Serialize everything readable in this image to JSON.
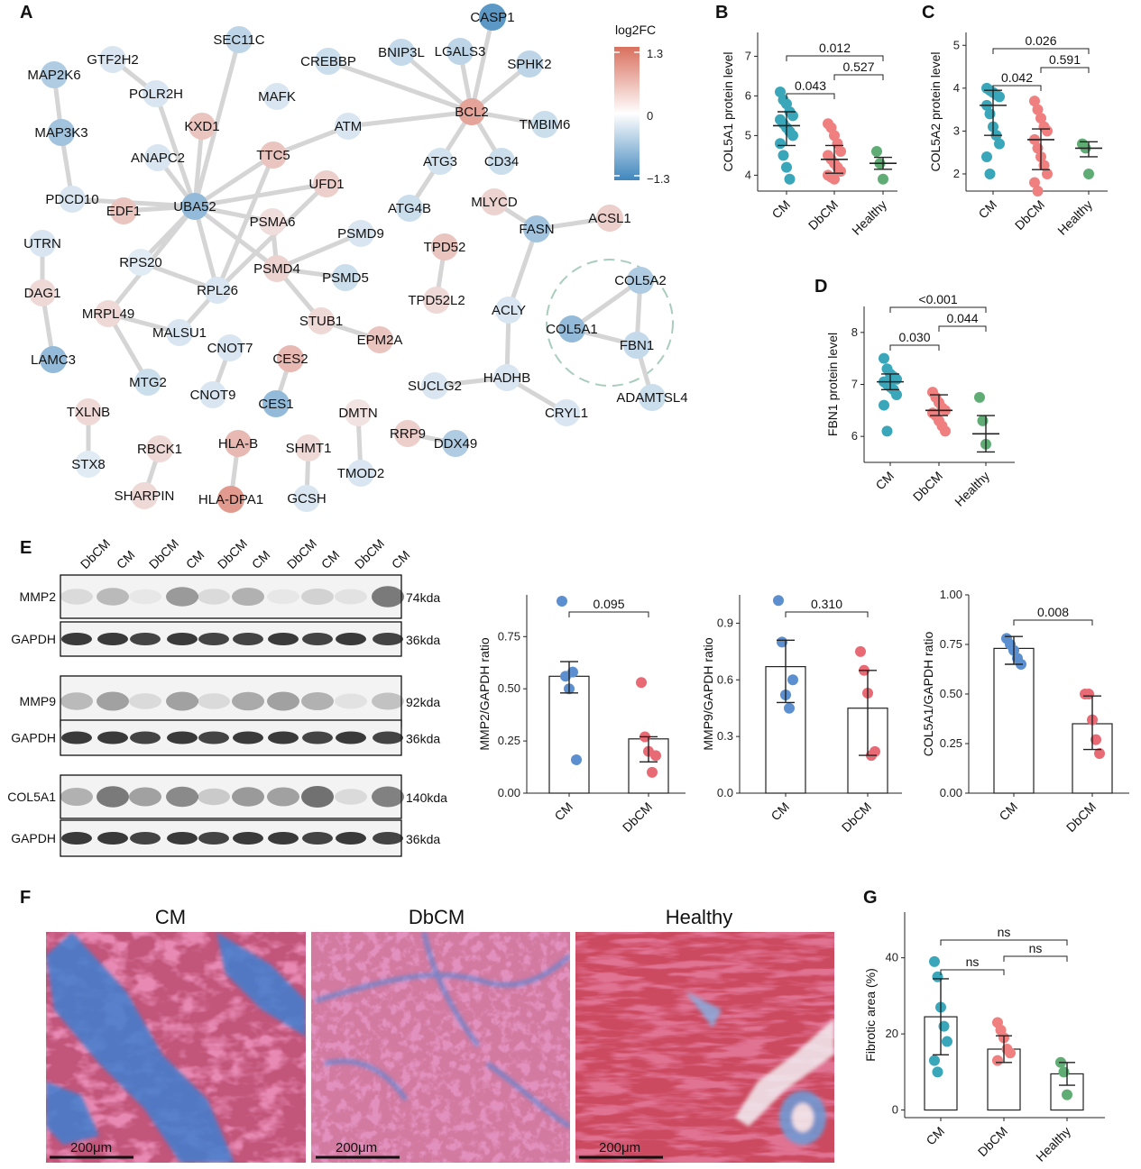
{
  "panel_letters": [
    "A",
    "B",
    "C",
    "D",
    "E",
    "F",
    "G"
  ],
  "colors": {
    "cm": "#3aa6b9",
    "dbcm": "#f07f7f",
    "healthy": "#5fad74",
    "cm_e": "#5b8fd0",
    "dbcm_e": "#e76a74",
    "up_high": "#d9705e",
    "down_high": "#3f86bd",
    "edge": "#d5d5d5"
  },
  "network": {
    "legend": {
      "title": "log2FC",
      "max": "1.3",
      "mid": "0",
      "min": "−1.3"
    },
    "nodes": [
      {
        "id": "CASP1",
        "fc": -1.1
      },
      {
        "id": "SEC11C",
        "fc": -0.4
      },
      {
        "id": "GTF2H2",
        "fc": -0.2
      },
      {
        "id": "MAP2K6",
        "fc": -0.5
      },
      {
        "id": "CREBBP",
        "fc": -0.3
      },
      {
        "id": "BNIP3L",
        "fc": -0.35
      },
      {
        "id": "LGALS3",
        "fc": -0.4
      },
      {
        "id": "SPHK2",
        "fc": -0.4
      },
      {
        "id": "POLR2H",
        "fc": -0.2
      },
      {
        "id": "MAFK",
        "fc": -0.2
      },
      {
        "id": "BCL2",
        "fc": 0.8
      },
      {
        "id": "MAP3K3",
        "fc": -0.6
      },
      {
        "id": "KXD1",
        "fc": 0.5
      },
      {
        "id": "ATM",
        "fc": -0.2
      },
      {
        "id": "TMBIM6",
        "fc": -0.3
      },
      {
        "id": "ANAPC2",
        "fc": -0.2
      },
      {
        "id": "TTC5",
        "fc": 0.5
      },
      {
        "id": "ATG3",
        "fc": -0.25
      },
      {
        "id": "CD34",
        "fc": -0.3
      },
      {
        "id": "UFD1",
        "fc": 0.4
      },
      {
        "id": "PDCD10",
        "fc": -0.2
      },
      {
        "id": "EDF1",
        "fc": 0.5
      },
      {
        "id": "UBA52",
        "fc": -0.7
      },
      {
        "id": "ATG4B",
        "fc": -0.3
      },
      {
        "id": "MLYCD",
        "fc": 0.35
      },
      {
        "id": "ACSL1",
        "fc": 0.4
      },
      {
        "id": "PSMA6",
        "fc": 0.25
      },
      {
        "id": "PSMD9",
        "fc": -0.2
      },
      {
        "id": "FASN",
        "fc": -0.6
      },
      {
        "id": "UTRN",
        "fc": -0.2
      },
      {
        "id": "TPD52",
        "fc": 0.5
      },
      {
        "id": "RPS20",
        "fc": -0.15
      },
      {
        "id": "PSMD4",
        "fc": 0.35
      },
      {
        "id": "DAG1",
        "fc": 0.3
      },
      {
        "id": "RPL26",
        "fc": -0.2
      },
      {
        "id": "PSMD5",
        "fc": -0.3
      },
      {
        "id": "COL5A2",
        "fc": -0.5
      },
      {
        "id": "TPD52L2",
        "fc": 0.3
      },
      {
        "id": "ACLY",
        "fc": -0.2
      },
      {
        "id": "MRPL49",
        "fc": 0.3
      },
      {
        "id": "STUB1",
        "fc": 0.3
      },
      {
        "id": "COL5A1",
        "fc": -0.7
      },
      {
        "id": "MALSU1",
        "fc": -0.2
      },
      {
        "id": "EPM2A",
        "fc": 0.5
      },
      {
        "id": "FBN1",
        "fc": -0.35
      },
      {
        "id": "CNOT7",
        "fc": -0.2
      },
      {
        "id": "LAMC3",
        "fc": -0.7
      },
      {
        "id": "CES2",
        "fc": 0.6
      },
      {
        "id": "HADHB",
        "fc": -0.2
      },
      {
        "id": "MTG2",
        "fc": -0.3
      },
      {
        "id": "SUCLG2",
        "fc": -0.2
      },
      {
        "id": "ADAMTSL4",
        "fc": -0.3
      },
      {
        "id": "CNOT9",
        "fc": -0.2
      },
      {
        "id": "CES1",
        "fc": -0.7
      },
      {
        "id": "TXLNB",
        "fc": 0.3
      },
      {
        "id": "DMTN",
        "fc": 0.2
      },
      {
        "id": "CRYL1",
        "fc": -0.2
      },
      {
        "id": "RRP9",
        "fc": 0.4
      },
      {
        "id": "DDX49",
        "fc": -0.5
      },
      {
        "id": "STX8",
        "fc": -0.15
      },
      {
        "id": "RBCK1",
        "fc": 0.3
      },
      {
        "id": "HLA-B",
        "fc": 0.6
      },
      {
        "id": "SHMT1",
        "fc": 0.3
      },
      {
        "id": "TMOD2",
        "fc": -0.2
      },
      {
        "id": "SHARPIN",
        "fc": 0.3
      },
      {
        "id": "HLA-DPA1",
        "fc": 0.9
      },
      {
        "id": "GCSH",
        "fc": -0.2
      }
    ],
    "edges": [
      [
        "CASP1",
        "BCL2"
      ],
      [
        "CREBBP",
        "BCL2"
      ],
      [
        "BNIP3L",
        "BCL2"
      ],
      [
        "LGALS3",
        "BCL2"
      ],
      [
        "SPHK2",
        "BCL2"
      ],
      [
        "TMBIM6",
        "BCL2"
      ],
      [
        "CD34",
        "BCL2"
      ],
      [
        "ATG3",
        "BCL2"
      ],
      [
        "ATM",
        "BCL2"
      ],
      [
        "TTC5",
        "ATM"
      ],
      [
        "ATG3",
        "ATG4B"
      ],
      [
        "MAP2K6",
        "MAP3K3"
      ],
      [
        "MAP3K3",
        "PDCD10"
      ],
      [
        "GTF2H2",
        "POLR2H"
      ],
      [
        "POLR2H",
        "UBA52"
      ],
      [
        "SEC11C",
        "UBA52"
      ],
      [
        "KXD1",
        "UBA52"
      ],
      [
        "ANAPC2",
        "UBA52"
      ],
      [
        "TTC5",
        "UBA52"
      ],
      [
        "UFD1",
        "UBA52"
      ],
      [
        "EDF1",
        "UBA52"
      ],
      [
        "PDCD10",
        "UBA52"
      ],
      [
        "UBA52",
        "RPS20"
      ],
      [
        "UBA52",
        "RPL26"
      ],
      [
        "UBA52",
        "PSMD4"
      ],
      [
        "UBA52",
        "PSMA6"
      ],
      [
        "UBA52",
        "MRPL49"
      ],
      [
        "RPS20",
        "RPL26"
      ],
      [
        "TTC5",
        "RPL26"
      ],
      [
        "UFD1",
        "RPL26"
      ],
      [
        "PSMA6",
        "PSMD4"
      ],
      [
        "PSMD9",
        "PSMD4"
      ],
      [
        "PSMD5",
        "PSMD4"
      ],
      [
        "PSMD4",
        "STUB1"
      ],
      [
        "STUB1",
        "EPM2A"
      ],
      [
        "RPL26",
        "MALSU1"
      ],
      [
        "MALSU1",
        "MRPL49"
      ],
      [
        "MRPL49",
        "MTG2"
      ],
      [
        "UTRN",
        "DAG1"
      ],
      [
        "DAG1",
        "LAMC3"
      ],
      [
        "TPD52",
        "TPD52L2"
      ],
      [
        "MLYCD",
        "FASN"
      ],
      [
        "FASN",
        "ACSL1"
      ],
      [
        "FASN",
        "ACLY"
      ],
      [
        "ACLY",
        "HADHB"
      ],
      [
        "HADHB",
        "SUCLG2"
      ],
      [
        "HADHB",
        "CRYL1"
      ],
      [
        "COL5A2",
        "COL5A1"
      ],
      [
        "COL5A2",
        "FBN1"
      ],
      [
        "COL5A1",
        "FBN1"
      ],
      [
        "FBN1",
        "ADAMTSL4"
      ],
      [
        "CNOT7",
        "CNOT9"
      ],
      [
        "CES2",
        "CES1"
      ],
      [
        "TXLNB",
        "STX8"
      ],
      [
        "DMTN",
        "TMOD2"
      ],
      [
        "RRP9",
        "DDX49"
      ],
      [
        "RBCK1",
        "SHARPIN"
      ],
      [
        "HLA-B",
        "HLA-DPA1"
      ],
      [
        "SHMT1",
        "GCSH"
      ]
    ]
  },
  "panel_b": {
    "ylabel": "COL5A1 protein level",
    "yticks": [
      "4",
      "5",
      "6",
      "7"
    ],
    "categories": [
      "CM",
      "DbCM",
      "Healthy"
    ],
    "pvals": [
      "0.012",
      "0.043",
      "0.527"
    ]
  },
  "panel_c": {
    "ylabel": "COL5A2 protein level",
    "yticks": [
      "2",
      "3",
      "4",
      "5"
    ],
    "categories": [
      "CM",
      "DbCM",
      "Healthy"
    ],
    "pvals": [
      "0.026",
      "0.042",
      "0.591"
    ]
  },
  "panel_d": {
    "ylabel": "FBN1 protein level",
    "yticks": [
      "6",
      "7",
      "8"
    ],
    "categories": [
      "CM",
      "DbCM",
      "Healthy"
    ],
    "pvals": [
      "<0.001",
      "0.030",
      "0.044"
    ]
  },
  "blot": {
    "lanes": [
      "DbCM",
      "CM",
      "DbCM",
      "CM",
      "DbCM",
      "CM",
      "DbCM",
      "CM",
      "DbCM",
      "CM"
    ],
    "rows": [
      {
        "name": "MMP2",
        "kda": "74kda"
      },
      {
        "name": "GAPDH",
        "kda": "36kda"
      },
      {
        "name": "MMP9",
        "kda": "92kda"
      },
      {
        "name": "GAPDH",
        "kda": "36kda"
      },
      {
        "name": "COL5A1",
        "kda": "140kda"
      },
      {
        "name": "GAPDH",
        "kda": "36kda"
      }
    ]
  },
  "ratio_charts": [
    {
      "ylabel": "MMP2/GAPDH ratio",
      "yticks": [
        "0.00",
        "0.25",
        "0.50",
        "0.75"
      ],
      "categories": [
        "CM",
        "DbCM"
      ],
      "pval": "0.095"
    },
    {
      "ylabel": "MMP9/GAPDH ratio",
      "yticks": [
        "0.0",
        "0.3",
        "0.6",
        "0.9"
      ],
      "categories": [
        "CM",
        "DbCM"
      ],
      "pval": "0.310"
    },
    {
      "ylabel": "COL5A1/GAPDH ratio",
      "yticks": [
        "0.00",
        "0.25",
        "0.50",
        "0.75",
        "1.00"
      ],
      "categories": [
        "CM",
        "DbCM"
      ],
      "pval": "0.008"
    }
  ],
  "histology": {
    "titles": [
      "CM",
      "DbCM",
      "Healthy"
    ],
    "scale_label": "200μm"
  },
  "panel_g": {
    "ylabel": "Fibrotic area (%)",
    "yticks": [
      "0",
      "20",
      "40"
    ],
    "categories": [
      "CM",
      "DbCM",
      "Healthy"
    ],
    "pvals": [
      "ns",
      "ns",
      "ns"
    ]
  },
  "chart_data": [
    {
      "type": "scatter",
      "panel": "B",
      "ylabel": "COL5A1 protein level",
      "categories": [
        "CM",
        "DbCM",
        "Healthy"
      ],
      "ylim": [
        3.6,
        7.6
      ],
      "series": [
        {
          "name": "CM",
          "values": [
            6.1,
            5.9,
            5.8,
            5.6,
            5.5,
            5.4,
            5.3,
            5.2,
            5.1,
            5.0,
            4.8,
            4.5,
            4.2,
            3.9
          ],
          "mean": 5.25,
          "err": [
            4.75,
            5.6
          ]
        },
        {
          "name": "DbCM",
          "values": [
            5.3,
            5.2,
            5.0,
            4.8,
            4.6,
            4.5,
            4.4,
            4.3,
            4.2,
            4.1,
            4.0,
            3.95,
            3.9
          ],
          "mean": 4.4,
          "err": [
            4.05,
            4.75
          ]
        },
        {
          "name": "Healthy",
          "values": [
            4.6,
            4.3,
            3.9
          ],
          "mean": 4.3,
          "err": [
            4.15,
            4.45
          ]
        }
      ]
    },
    {
      "type": "scatter",
      "panel": "C",
      "ylabel": "COL5A2 protein level",
      "categories": [
        "CM",
        "DbCM",
        "Healthy"
      ],
      "ylim": [
        1.6,
        5.3
      ],
      "series": [
        {
          "name": "CM",
          "values": [
            4.0,
            3.95,
            3.9,
            3.85,
            3.8,
            3.6,
            3.4,
            3.1,
            2.9,
            2.7,
            2.4,
            2.0
          ],
          "mean": 3.6,
          "err": [
            2.9,
            3.95
          ]
        },
        {
          "name": "DbCM",
          "values": [
            3.7,
            3.5,
            3.3,
            3.1,
            3.0,
            2.8,
            2.6,
            2.4,
            2.2,
            2.0,
            1.8,
            1.6
          ],
          "mean": 2.8,
          "err": [
            2.1,
            3.05
          ]
        },
        {
          "name": "Healthy",
          "values": [
            2.7,
            2.6,
            2.0
          ],
          "mean": 2.6,
          "err": [
            2.4,
            2.75
          ]
        }
      ]
    },
    {
      "type": "scatter",
      "panel": "D",
      "ylabel": "FBN1 protein level",
      "categories": [
        "CM",
        "DbCM",
        "Healthy"
      ],
      "ylim": [
        5.5,
        8.5
      ],
      "series": [
        {
          "name": "CM",
          "values": [
            7.5,
            7.3,
            7.2,
            7.15,
            7.1,
            7.05,
            7.0,
            6.95,
            6.9,
            6.8,
            6.6,
            6.1
          ],
          "mean": 7.05,
          "err": [
            6.9,
            7.2
          ]
        },
        {
          "name": "DbCM",
          "values": [
            6.85,
            6.75,
            6.65,
            6.55,
            6.5,
            6.45,
            6.4,
            6.3,
            6.2,
            6.1
          ],
          "mean": 6.5,
          "err": [
            6.4,
            6.8
          ]
        },
        {
          "name": "Healthy",
          "values": [
            6.75,
            6.3,
            5.85
          ],
          "mean": 6.05,
          "err": [
            5.7,
            6.4
          ]
        }
      ]
    },
    {
      "type": "bar",
      "panel": "E",
      "ylabel": "MMP2/GAPDH ratio",
      "categories": [
        "CM",
        "DbCM"
      ],
      "ylim": [
        0,
        0.95
      ],
      "values": [
        0.56,
        0.26
      ],
      "err": [
        [
          0.48,
          0.63
        ],
        [
          0.15,
          0.27
        ]
      ],
      "points": [
        [
          0.92,
          0.56,
          0.5,
          0.58,
          0.16
        ],
        [
          0.53,
          0.27,
          0.2,
          0.1,
          0.18
        ]
      ]
    },
    {
      "type": "bar",
      "panel": "E",
      "ylabel": "MMP9/GAPDH ratio",
      "categories": [
        "CM",
        "DbCM"
      ],
      "ylim": [
        0,
        1.05
      ],
      "values": [
        0.67,
        0.45
      ],
      "err": [
        [
          0.48,
          0.81
        ],
        [
          0.2,
          0.65
        ]
      ],
      "points": [
        [
          1.02,
          0.8,
          0.52,
          0.45,
          0.6
        ],
        [
          0.75,
          0.65,
          0.53,
          0.2,
          0.22
        ]
      ]
    },
    {
      "type": "bar",
      "panel": "E",
      "ylabel": "COL5A1/GAPDH ratio",
      "categories": [
        "CM",
        "DbCM"
      ],
      "ylim": [
        0,
        1.0
      ],
      "values": [
        0.73,
        0.35
      ],
      "err": [
        [
          0.65,
          0.79
        ],
        [
          0.22,
          0.49
        ]
      ],
      "points": [
        [
          0.78,
          0.75,
          0.72,
          0.68,
          0.65
        ],
        [
          0.5,
          0.5,
          0.37,
          0.27,
          0.2
        ]
      ]
    },
    {
      "type": "bar",
      "panel": "G",
      "ylabel": "Fibrotic area (%)",
      "categories": [
        "CM",
        "DbCM",
        "Healthy"
      ],
      "ylim": [
        -2,
        52
      ],
      "values": [
        24.5,
        16.0,
        9.5
      ],
      "err": [
        [
          14.5,
          34.5
        ],
        [
          12.5,
          19.5
        ],
        [
          6.5,
          12.5
        ]
      ],
      "points": [
        [
          39,
          35,
          27,
          22,
          18,
          13,
          10
        ],
        [
          23,
          21,
          19,
          16,
          15,
          13
        ],
        [
          12.5,
          10,
          4
        ]
      ]
    }
  ]
}
